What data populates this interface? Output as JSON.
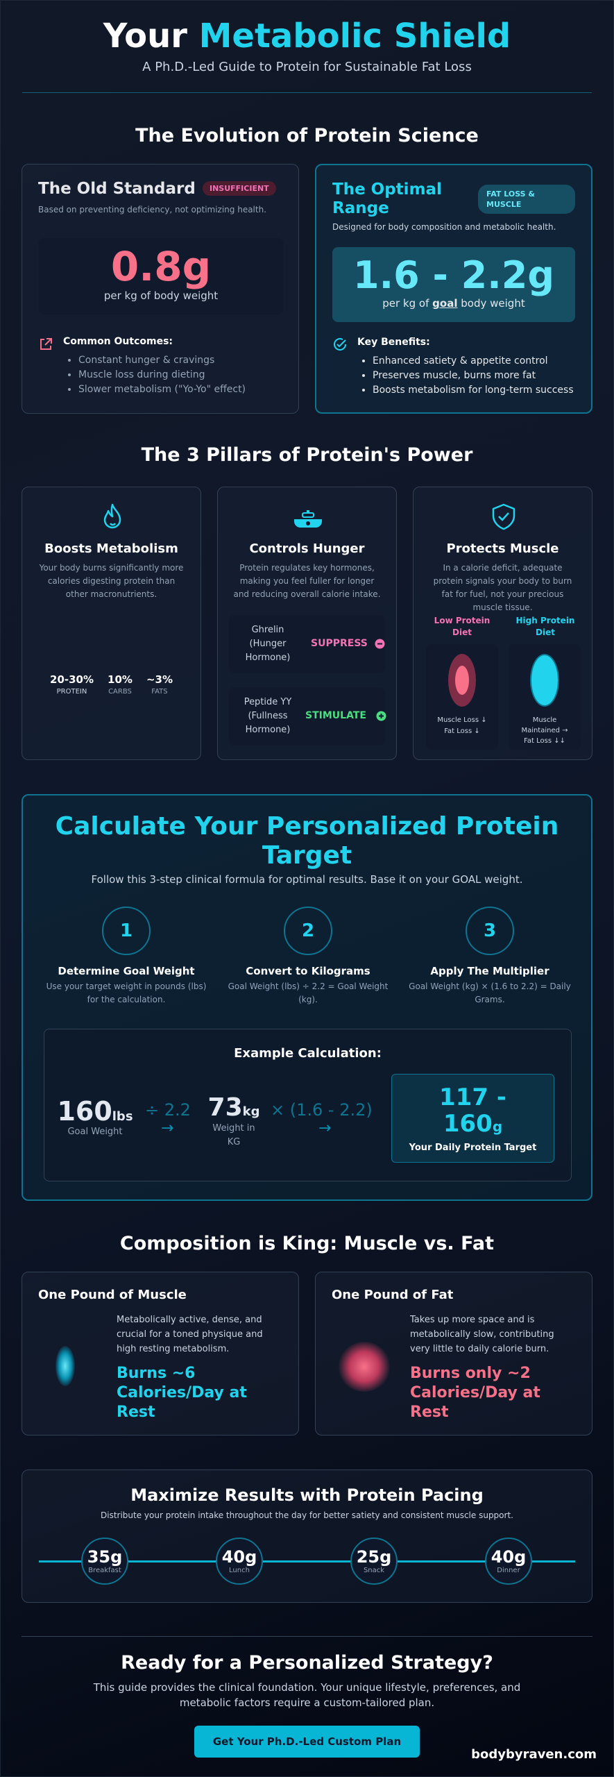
{
  "header": {
    "title_part1": "Your",
    "title_part2": "Metabolic Shield",
    "subtitle": "A Ph.D.-Led Guide to Protein for Sustainable Fat Loss"
  },
  "evolution": {
    "title": "The Evolution of Protein Science",
    "old": {
      "title": "The Old Standard",
      "badge": "INSUFFICIENT",
      "desc": "Based on preventing deficiency, not optimizing health.",
      "value": "0.8g",
      "unit": "per kg of body weight",
      "outcomes_title": "Common Outcomes:",
      "outcomes": [
        "Constant hunger & cravings",
        "Muscle loss during dieting",
        "Slower metabolism (\"Yo-Yo\" effect)"
      ]
    },
    "optimal": {
      "title_line1": "The Optimal",
      "title_line2": "Range",
      "badge_line1": "FAT LOSS &",
      "badge_line2": "MUSCLE",
      "desc": "Designed for body composition and metabolic health.",
      "value": "1.6 - 2.2g",
      "unit_pre": "per kg of",
      "unit_goal": "goal",
      "unit_post": "body weight",
      "benefits_title": "Key Benefits:",
      "benefits": [
        "Enhanced satiety & appetite control",
        "Preserves muscle, burns more fat",
        "Boosts metabolism for long-term success"
      ]
    }
  },
  "pillars": {
    "title": "The 3 Pillars of Protein's Power",
    "metabolism": {
      "title": "Boosts Metabolism",
      "desc": "Your body burns significantly more calories digesting protein than other macronutrients.",
      "stats": [
        {
          "value": "20-30%",
          "label": "PROTEIN"
        },
        {
          "value": "10%",
          "label": "CARBS"
        },
        {
          "value": "~3%",
          "label": "FATS"
        }
      ]
    },
    "hunger": {
      "title": "Controls Hunger",
      "desc": "Protein regulates key hormones, making you feel fuller for longer and reducing overall calorie intake.",
      "hormones": [
        {
          "name_line1": "Ghrelin",
          "name_line2": "(Hunger",
          "name_line3": "Hormone)",
          "action": "SUPPRESS",
          "color": "#f472b6"
        },
        {
          "name_line1": "Peptide YY",
          "name_line2": "(Fullness",
          "name_line3": "Hormone)",
          "action": "STIMULATE",
          "color": "#4ade80"
        }
      ]
    },
    "muscle": {
      "title": "Protects Muscle",
      "desc": "In a calorie deficit, adequate protein signals your body to burn fat for fuel, not your precious muscle tissue.",
      "low": {
        "label_line1": "Low Protein",
        "label_line2": "Diet",
        "result_line1": "Muscle Loss ↓",
        "result_line2": "Fat Loss ↓"
      },
      "high": {
        "label_line1": "High Protein",
        "label_line2": "Diet",
        "result_line1": "Muscle",
        "result_line2": "Maintained →",
        "result_line3": "Fat Loss ↓↓"
      }
    }
  },
  "calculator": {
    "title_line1": "Calculate Your Personalized Protein",
    "title_line2": "Target",
    "subtitle": "Follow this 3-step clinical formula for optimal results. Base it on your GOAL weight.",
    "steps": [
      {
        "num": "1",
        "title": "Determine Goal Weight",
        "desc_line1": "Use your target weight in pounds (lbs)",
        "desc_line2": "for the calculation."
      },
      {
        "num": "2",
        "title": "Convert to Kilograms",
        "desc_line1": "Goal Weight (lbs) ÷ 2.2 = Goal Weight",
        "desc_line2": "(kg)."
      },
      {
        "num": "3",
        "title": "Apply The Multiplier",
        "desc_line1": "Goal Weight (kg) × (1.6 to 2.2) = Daily",
        "desc_line2": "Grams."
      }
    ],
    "example": {
      "title": "Example Calculation:",
      "lbs_value": "160",
      "lbs_unit": "lbs",
      "lbs_label": "Goal Weight",
      "divide": "÷ 2.2",
      "kg_value": "73",
      "kg_unit": "kg",
      "kg_label_line1": "Weight in",
      "kg_label_line2": "KG",
      "multiply": "× (1.6 - 2.2)",
      "result_line1": "117 -",
      "result_line2": "160",
      "result_unit": "g",
      "result_label": "Your Daily Protein Target"
    }
  },
  "composition": {
    "title": "Composition is King: Muscle vs. Fat",
    "muscle": {
      "title": "One Pound of Muscle",
      "desc_line1": "Metabolically active, dense, and",
      "desc_line2": "crucial for a toned physique and",
      "desc_line3": "high resting metabolism.",
      "burn_line1": "Burns ~6",
      "burn_line2": "Calories/Day at",
      "burn_line3": "Rest"
    },
    "fat": {
      "title": "One Pound of Fat",
      "desc_line1": "Takes up more space and is",
      "desc_line2": "metabolically slow, contributing",
      "desc_line3": "very little to daily calorie burn.",
      "burn_line1": "Burns only ~2",
      "burn_line2": "Calories/Day at",
      "burn_line3": "Rest"
    }
  },
  "pacing": {
    "title": "Maximize Results with Protein Pacing",
    "subtitle": "Distribute your protein intake throughout the day for better satiety and consistent muscle support.",
    "meals": [
      {
        "grams": "35g",
        "label": "Breakfast"
      },
      {
        "grams": "40g",
        "label": "Lunch"
      },
      {
        "grams": "25g",
        "label": "Snack"
      },
      {
        "grams": "40g",
        "label": "Dinner"
      }
    ]
  },
  "cta": {
    "title": "Ready for a Personalized Strategy?",
    "desc_line1": "This guide provides the clinical foundation. Your unique lifestyle, preferences, and",
    "desc_line2": "metabolic factors require a custom-tailored plan.",
    "button": "Get Your Ph.D.-Led Custom Plan",
    "brand": "bodybyraven.com"
  },
  "colors": {
    "accent": "#22d3ee",
    "warning": "#f472b6",
    "positive": "#4ade80"
  }
}
